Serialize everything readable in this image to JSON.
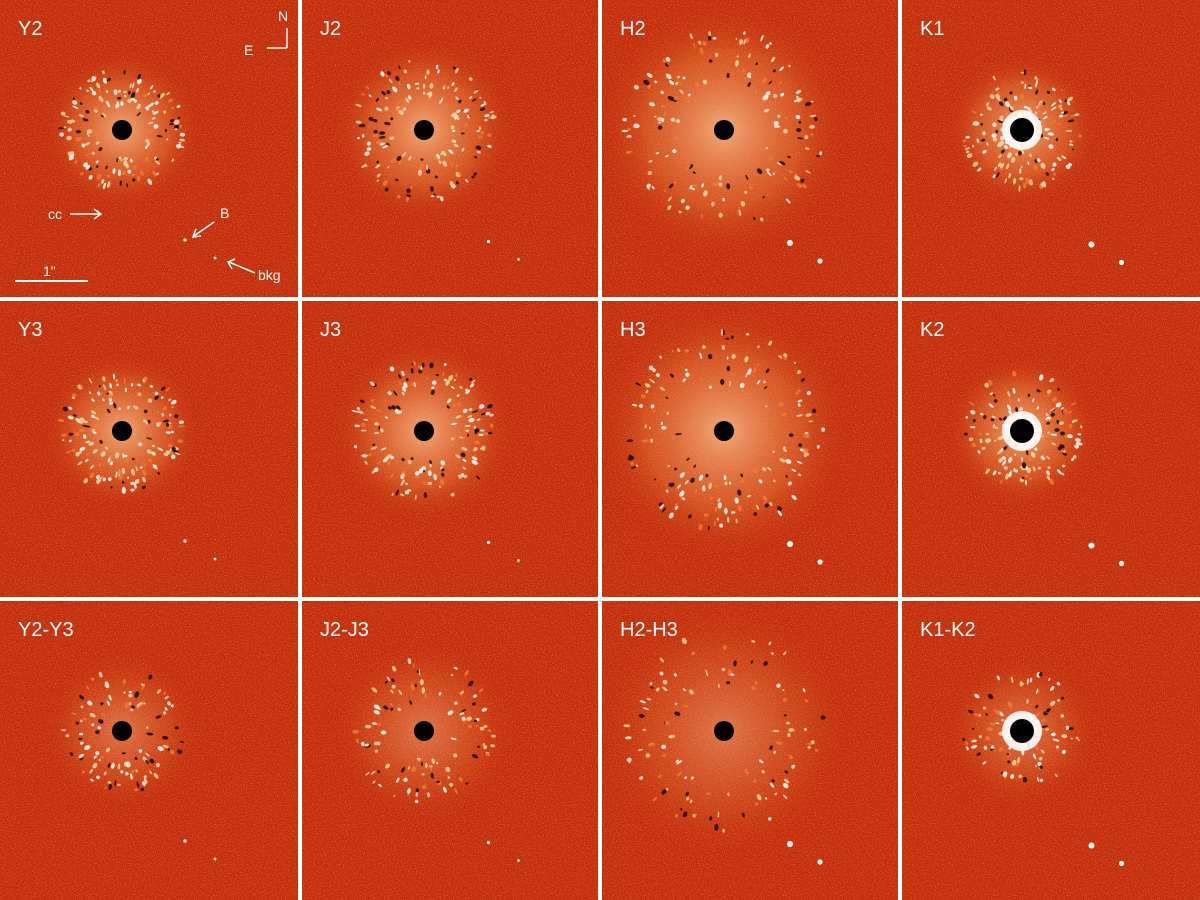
{
  "panels": [
    {
      "label": "Y2"
    },
    {
      "label": "J2"
    },
    {
      "label": "H2"
    },
    {
      "label": "K1"
    },
    {
      "label": "Y3"
    },
    {
      "label": "J3"
    },
    {
      "label": "H3"
    },
    {
      "label": "K2"
    },
    {
      "label": "Y2-Y3"
    },
    {
      "label": "J2-J3"
    },
    {
      "label": "H2-H3"
    },
    {
      "label": "K1-K2"
    }
  ],
  "annotations": {
    "north": "N",
    "east": "E",
    "cc": "cc",
    "companion": "B",
    "background": "bkg",
    "scale": "1\""
  }
}
